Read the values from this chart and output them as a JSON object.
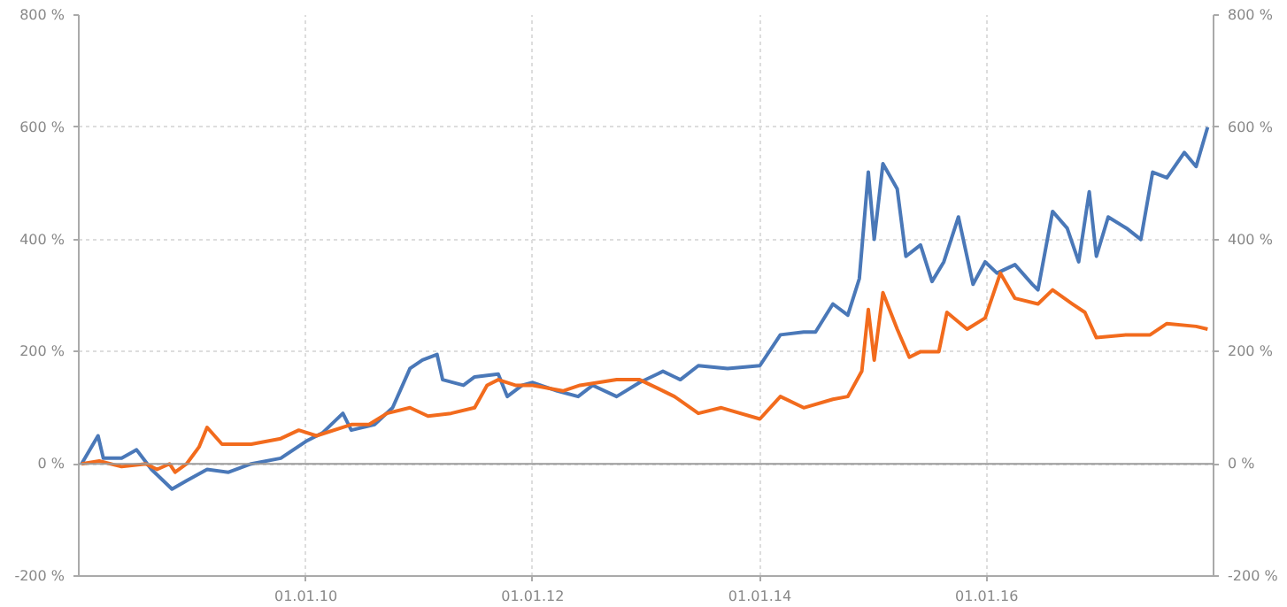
{
  "chart_data": {
    "type": "line",
    "xlim": [
      "2008-01-01",
      "2017-12-31"
    ],
    "xticks": [
      {
        "value": "2010-01-01",
        "label": "01.01.10"
      },
      {
        "value": "2012-01-01",
        "label": "01.01.12"
      },
      {
        "value": "2014-01-01",
        "label": "01.01.14"
      },
      {
        "value": "2016-01-01",
        "label": "01.01.16"
      }
    ],
    "ylim": [
      -200,
      800
    ],
    "yticks": [
      {
        "value": -200,
        "label": "-200 %"
      },
      {
        "value": 0,
        "label": "0 %"
      },
      {
        "value": 200,
        "label": "200 %"
      },
      {
        "value": 400,
        "label": "400 %"
      },
      {
        "value": 600,
        "label": "600 %"
      },
      {
        "value": 800,
        "label": "800 %"
      }
    ],
    "y2lim": [
      -200,
      800
    ],
    "y2ticks": [
      {
        "value": -200,
        "label": "-200 %"
      },
      {
        "value": 0,
        "label": "0 %"
      },
      {
        "value": 200,
        "label": "200 %"
      },
      {
        "value": 400,
        "label": "400 %"
      },
      {
        "value": 600,
        "label": "600 %"
      },
      {
        "value": 800,
        "label": "800 %"
      }
    ],
    "grid": true,
    "line_style": "solid",
    "ref_lines": [
      {
        "axis": "y",
        "value": 0,
        "color": "#9a9a9a"
      }
    ],
    "series": [
      {
        "color": "#4a78b8",
        "x": [
          "2008-01-10",
          "2008-03-03",
          "2008-03-20",
          "2008-05-18",
          "2008-07-05",
          "2008-08-22",
          "2008-10-27",
          "2008-12-13",
          "2009-02-17",
          "2009-04-27",
          "2009-07-09",
          "2009-10-12",
          "2010-01-01",
          "2010-02-23",
          "2010-04-30",
          "2010-05-27",
          "2010-08-10",
          "2010-10-07",
          "2010-12-02",
          "2011-01-11",
          "2011-02-27",
          "2011-03-17",
          "2011-05-23",
          "2011-06-28",
          "2011-09-12",
          "2011-10-11",
          "2011-11-28",
          "2012-01-01",
          "2012-03-20",
          "2012-05-26",
          "2012-07-12",
          "2012-09-27",
          "2012-12-10",
          "2013-02-05",
          "2013-02-23",
          "2013-04-20",
          "2013-06-17",
          "2013-09-19",
          "2014-01-01",
          "2014-03-08",
          "2014-05-22",
          "2014-06-29",
          "2014-08-24",
          "2014-10-11",
          "2014-11-17",
          "2014-12-16",
          "2015-01-04",
          "2015-02-01",
          "2015-03-19",
          "2015-04-16",
          "2015-06-02",
          "2015-07-09",
          "2015-08-16",
          "2015-10-02",
          "2015-11-18",
          "2015-12-27",
          "2016-02-03",
          "2016-04-01",
          "2016-05-27",
          "2016-06-14",
          "2016-07-31",
          "2016-09-16",
          "2016-10-23",
          "2016-11-26",
          "2016-12-19",
          "2017-01-26",
          "2017-03-26",
          "2017-05-11",
          "2017-06-18",
          "2017-08-03",
          "2017-09-28",
          "2017-11-05",
          "2017-12-12"
        ],
        "values": [
          0,
          50,
          10,
          10,
          25,
          -10,
          -45,
          -30,
          -10,
          -15,
          0,
          10,
          40,
          55,
          90,
          60,
          70,
          100,
          170,
          185,
          195,
          150,
          140,
          155,
          160,
          120,
          140,
          145,
          130,
          120,
          140,
          120,
          145,
          160,
          165,
          150,
          175,
          170,
          175,
          230,
          235,
          235,
          285,
          265,
          330,
          520,
          400,
          535,
          490,
          370,
          390,
          325,
          360,
          440,
          320,
          360,
          340,
          355,
          320,
          310,
          450,
          420,
          360,
          485,
          370,
          440,
          420,
          400,
          520,
          510,
          555,
          530,
          600
        ]
      },
      {
        "color": "#f26b1d",
        "x": [
          "2008-01-10",
          "2008-03-07",
          "2008-05-18",
          "2008-08-04",
          "2008-09-09",
          "2008-10-19",
          "2008-11-06",
          "2008-12-13",
          "2009-01-22",
          "2009-02-17",
          "2009-04-06",
          "2009-07-09",
          "2009-10-12",
          "2009-12-09",
          "2010-02-04",
          "2010-05-27",
          "2010-07-23",
          "2010-09-19",
          "2010-12-02",
          "2011-01-29",
          "2011-04-13",
          "2011-06-28",
          "2011-08-07",
          "2011-09-12",
          "2011-11-06",
          "2012-01-01",
          "2012-04-07",
          "2012-06-01",
          "2012-09-27",
          "2012-12-10",
          "2013-02-05",
          "2013-04-01",
          "2013-06-17",
          "2013-08-30",
          "2014-01-01",
          "2014-03-08",
          "2014-05-22",
          "2014-08-24",
          "2014-10-11",
          "2014-11-25",
          "2014-12-16",
          "2015-01-04",
          "2015-02-01",
          "2015-03-19",
          "2015-04-27",
          "2015-06-02",
          "2015-07-31",
          "2015-08-26",
          "2015-10-30",
          "2015-12-27",
          "2016-02-14",
          "2016-04-01",
          "2016-06-14",
          "2016-07-31",
          "2016-10-03",
          "2016-11-12",
          "2016-12-19",
          "2017-03-26",
          "2017-06-10",
          "2017-08-03",
          "2017-11-05",
          "2017-12-12"
        ],
        "values": [
          0,
          5,
          -5,
          0,
          -10,
          0,
          -15,
          0,
          30,
          65,
          35,
          35,
          45,
          60,
          50,
          70,
          70,
          90,
          100,
          85,
          90,
          100,
          140,
          150,
          140,
          140,
          130,
          140,
          150,
          150,
          135,
          120,
          90,
          100,
          80,
          120,
          100,
          115,
          120,
          165,
          275,
          185,
          305,
          240,
          190,
          200,
          200,
          270,
          240,
          260,
          340,
          295,
          285,
          310,
          285,
          270,
          225,
          230,
          230,
          250,
          245,
          240
        ]
      }
    ]
  }
}
